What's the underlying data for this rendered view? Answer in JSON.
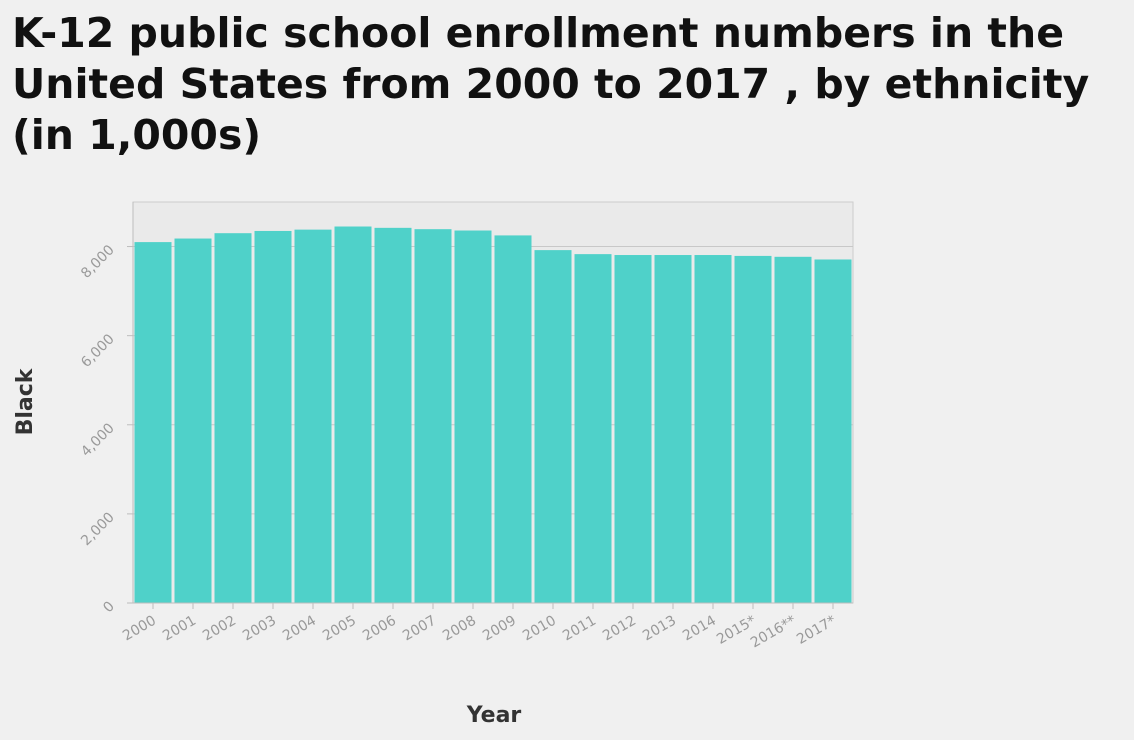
{
  "chart_data": {
    "type": "bar",
    "title": "K-12 public school enrollment numbers in the United States from 2000 to 2017 , by ethnicity (in 1,000s)",
    "xlabel": "Year",
    "ylabel": "Black",
    "categories": [
      "2000",
      "2001",
      "2002",
      "2003",
      "2004",
      "2005",
      "2006",
      "2007",
      "2008",
      "2009",
      "2010",
      "2011",
      "2012",
      "2013",
      "2014",
      "2015*",
      "2016**",
      "2017*"
    ],
    "values": [
      8100,
      8180,
      8300,
      8350,
      8380,
      8450,
      8420,
      8390,
      8360,
      8250,
      7920,
      7830,
      7810,
      7810,
      7810,
      7790,
      7770,
      7710
    ],
    "ylim": [
      0,
      9000
    ],
    "yticks": [
      0,
      2000,
      4000,
      6000,
      8000
    ],
    "ytick_labels": [
      "0",
      "2,000",
      "4,000",
      "6,000",
      "8,000"
    ],
    "bar_color": "#4fd1c9",
    "grid": true,
    "legend": "none"
  }
}
